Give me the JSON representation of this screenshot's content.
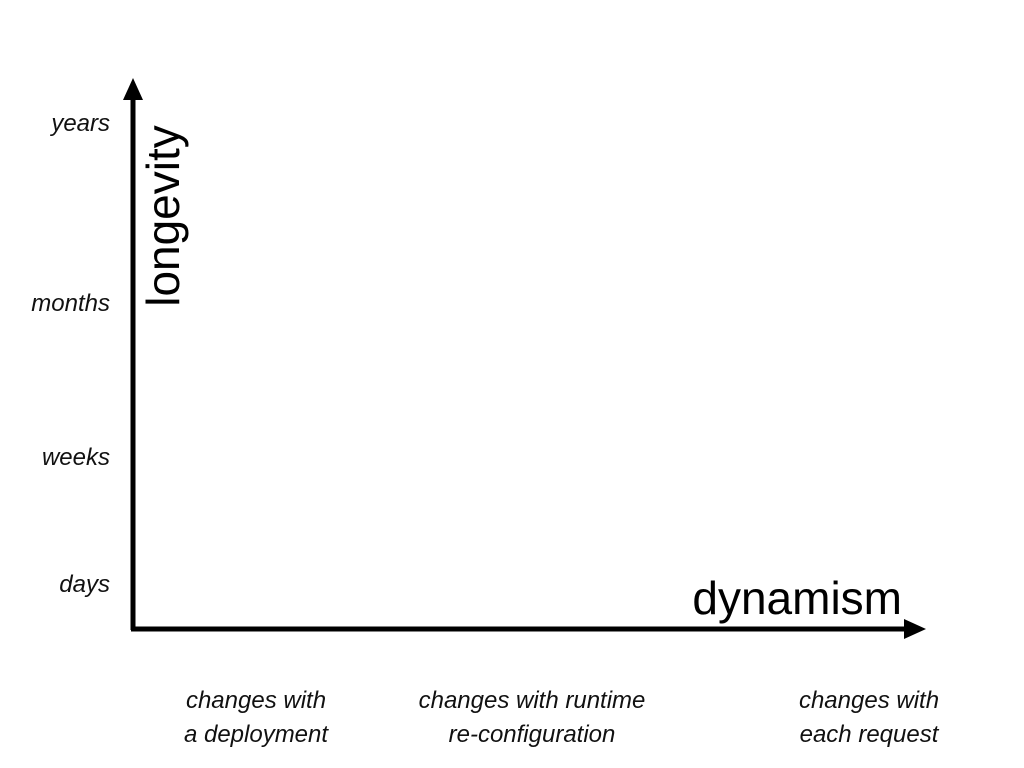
{
  "diagram": {
    "y_axis": {
      "title": "longevity",
      "ticks": [
        "years",
        "months",
        "weeks",
        "days"
      ]
    },
    "x_axis": {
      "title": "dynamism",
      "ticks": [
        {
          "line1": "changes with",
          "line2": "a deployment"
        },
        {
          "line1": "changes with runtime",
          "line2": "re-configuration"
        },
        {
          "line1": "changes with",
          "line2": "each request"
        }
      ]
    },
    "colors": {
      "axis": "#000000",
      "text": "#111111",
      "background": "#ffffff"
    }
  }
}
